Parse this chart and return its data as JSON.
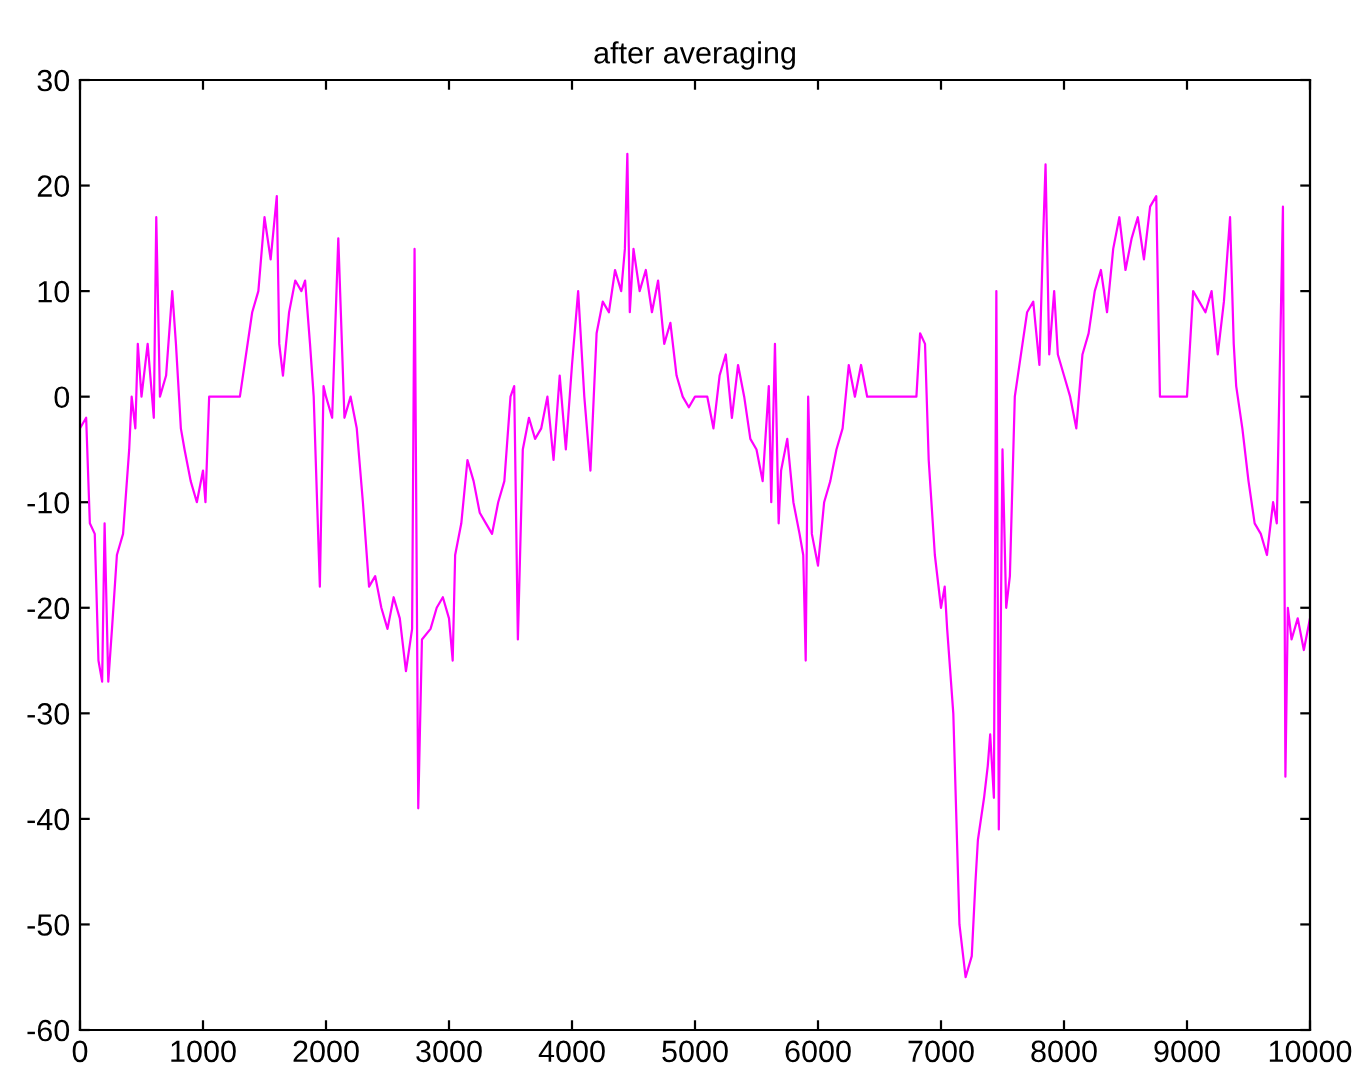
{
  "chart_data": {
    "type": "line",
    "title": "after averaging",
    "xlim": [
      0,
      10000
    ],
    "ylim": [
      -60,
      30
    ],
    "xticks": [
      0,
      1000,
      2000,
      3000,
      4000,
      5000,
      6000,
      7000,
      8000,
      9000,
      10000
    ],
    "yticks": [
      -60,
      -50,
      -40,
      -30,
      -20,
      -10,
      0,
      10,
      20,
      30
    ],
    "grid": false,
    "marker": "none",
    "line_style": "solid",
    "series": [
      {
        "color": "#ff00ff",
        "x": [
          0,
          50,
          80,
          120,
          150,
          180,
          200,
          230,
          260,
          300,
          350,
          400,
          420,
          450,
          470,
          500,
          550,
          600,
          620,
          650,
          700,
          750,
          780,
          820,
          850,
          900,
          950,
          1000,
          1020,
          1050,
          1300,
          1400,
          1450,
          1500,
          1550,
          1600,
          1620,
          1650,
          1700,
          1750,
          1800,
          1830,
          1870,
          1900,
          1950,
          1980,
          2000,
          2050,
          2100,
          2150,
          2200,
          2250,
          2300,
          2350,
          2400,
          2450,
          2500,
          2550,
          2600,
          2650,
          2700,
          2720,
          2750,
          2780,
          2850,
          2900,
          2950,
          3000,
          3030,
          3050,
          3100,
          3150,
          3200,
          3250,
          3300,
          3350,
          3400,
          3450,
          3500,
          3530,
          3560,
          3600,
          3650,
          3700,
          3750,
          3800,
          3850,
          3900,
          3950,
          4000,
          4050,
          4100,
          4150,
          4200,
          4250,
          4300,
          4350,
          4400,
          4430,
          4450,
          4470,
          4500,
          4550,
          4600,
          4650,
          4700,
          4750,
          4800,
          4850,
          4900,
          4950,
          5000,
          5100,
          5150,
          5200,
          5250,
          5300,
          5350,
          5400,
          5450,
          5500,
          5550,
          5600,
          5620,
          5650,
          5680,
          5700,
          5750,
          5800,
          5850,
          5880,
          5900,
          5920,
          5950,
          6000,
          6050,
          6100,
          6150,
          6200,
          6250,
          6300,
          6350,
          6400,
          6800,
          6830,
          6870,
          6900,
          6950,
          7000,
          7030,
          7050,
          7100,
          7150,
          7200,
          7250,
          7280,
          7300,
          7350,
          7380,
          7400,
          7430,
          7450,
          7470,
          7500,
          7530,
          7560,
          7600,
          7650,
          7700,
          7750,
          7800,
          7830,
          7850,
          7880,
          7920,
          7950,
          8000,
          8050,
          8100,
          8150,
          8200,
          8250,
          8300,
          8350,
          8400,
          8450,
          8500,
          8550,
          8600,
          8650,
          8700,
          8750,
          8780,
          9000,
          9050,
          9100,
          9150,
          9200,
          9250,
          9300,
          9350,
          9380,
          9400,
          9450,
          9500,
          9550,
          9600,
          9650,
          9700,
          9730,
          9780,
          9800,
          9820,
          9850,
          9900,
          9950,
          10000
        ],
        "values": [
          -3,
          -2,
          -12,
          -13,
          -25,
          -27,
          -12,
          -27,
          -22,
          -15,
          -13,
          -5,
          0,
          -3,
          5,
          0,
          5,
          -2,
          17,
          0,
          2,
          10,
          5,
          -3,
          -5,
          -8,
          -10,
          -7,
          -10,
          0,
          0,
          8,
          10,
          17,
          13,
          19,
          5,
          2,
          8,
          11,
          10,
          11,
          5,
          0,
          -18,
          1,
          0,
          -2,
          15,
          -2,
          0,
          -3,
          -10,
          -18,
          -17,
          -20,
          -22,
          -19,
          -21,
          -26,
          -22,
          14,
          -39,
          -23,
          -22,
          -20,
          -19,
          -21,
          -25,
          -15,
          -12,
          -6,
          -8,
          -11,
          -12,
          -13,
          -10,
          -8,
          0,
          1,
          -23,
          -5,
          -2,
          -4,
          -3,
          0,
          -6,
          2,
          -5,
          3,
          10,
          0,
          -7,
          6,
          9,
          8,
          12,
          10,
          14,
          23,
          8,
          14,
          10,
          12,
          8,
          11,
          5,
          7,
          2,
          0,
          -1,
          0,
          0,
          -3,
          2,
          4,
          -2,
          3,
          0,
          -4,
          -5,
          -8,
          1,
          -10,
          5,
          -12,
          -7,
          -4,
          -10,
          -13,
          -15,
          -25,
          0,
          -13,
          -16,
          -10,
          -8,
          -5,
          -3,
          3,
          0,
          3,
          0,
          0,
          6,
          5,
          -6,
          -15,
          -20,
          -18,
          -22,
          -30,
          -50,
          -55,
          -53,
          -46,
          -42,
          -38,
          -35,
          -32,
          -38,
          10,
          -41,
          -5,
          -20,
          -17,
          0,
          4,
          8,
          9,
          3,
          15,
          22,
          4,
          10,
          4,
          2,
          0,
          -3,
          4,
          6,
          10,
          12,
          8,
          14,
          17,
          12,
          15,
          17,
          13,
          18,
          19,
          0,
          0,
          10,
          9,
          8,
          10,
          4,
          9,
          17,
          5,
          1,
          -3,
          -8,
          -12,
          -13,
          -15,
          -10,
          -12,
          18,
          -36,
          -20,
          -23,
          -21,
          -24,
          -21
        ]
      }
    ]
  }
}
